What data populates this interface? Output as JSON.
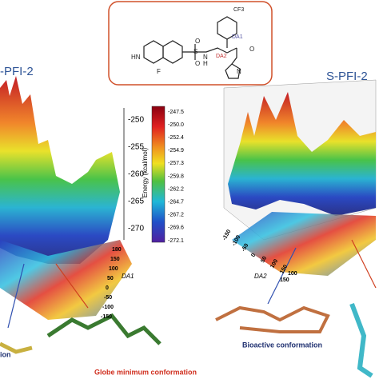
{
  "panels": {
    "left_title": "-PFI-2",
    "right_title": "S-PFI-2",
    "left_caption": "ion",
    "global_min": "Globe minimum conformation",
    "bioactive": "Bioactive conformation"
  },
  "structure": {
    "labels": [
      "CF3",
      "DA1",
      "DA2",
      "S",
      "O",
      "O",
      "N",
      "H",
      "HN",
      "F",
      "N",
      "O"
    ]
  },
  "energy_axis": {
    "title": "Energy (kcal/mol)",
    "ticks": [
      "-250",
      "-255",
      "-260",
      "-265",
      "-270"
    ]
  },
  "colorbar": {
    "labels": [
      "-247.5",
      "-250.0",
      "-252.4",
      "-254.9",
      "-257.3",
      "-259.8",
      "-262.2",
      "-264.7",
      "-267.2",
      "-269.6",
      "-272.1"
    ]
  },
  "left_floor": {
    "axis_title": "DA1",
    "ticks": [
      "180",
      "150",
      "100",
      "50",
      "0",
      "-50",
      "-100",
      "-150"
    ]
  },
  "right_floor": {
    "axis_title": "DA2",
    "ticks": [
      "-150",
      "-100",
      "-50",
      "0",
      "50",
      "100",
      "150"
    ],
    "side_ticks": [
      "150",
      "100"
    ]
  }
}
